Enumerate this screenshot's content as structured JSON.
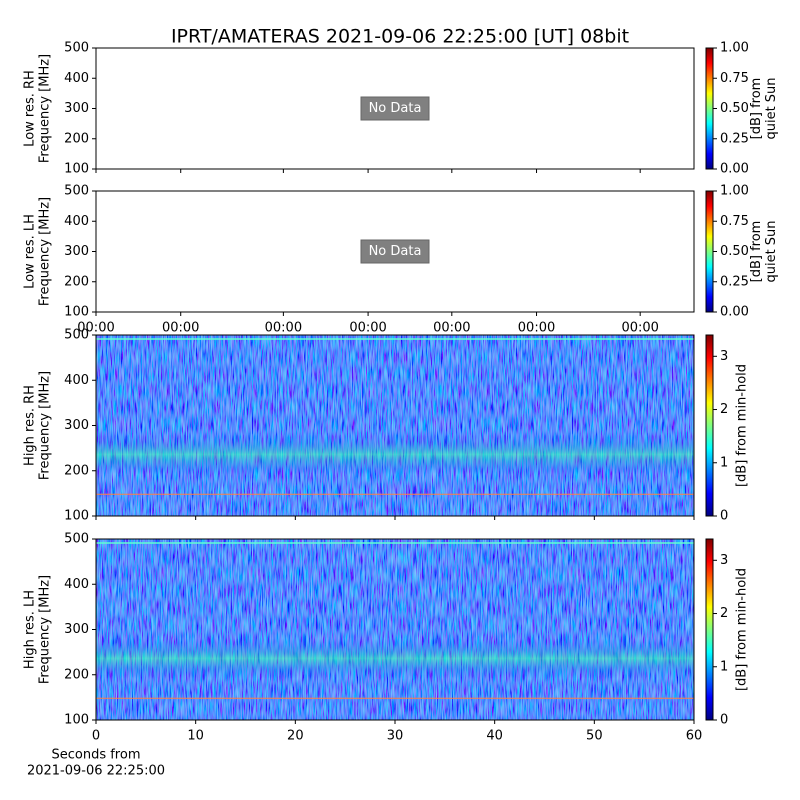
{
  "chart_data": [
    {
      "type": "spectrogram",
      "title": "IPRT/AMATERAS 2021-09-06 22:25:00 [UT]   08bit",
      "ylabel": [
        "Low res. RH",
        "Frequency [MHz]"
      ],
      "ylim": [
        100,
        500
      ],
      "yticks": [
        100,
        200,
        300,
        400,
        500
      ],
      "xlim": [
        0,
        60
      ],
      "colorbar_label": [
        "[dB] from",
        "quiet Sun"
      ],
      "colormap": "jet",
      "clim": [
        0,
        1
      ],
      "cticks": [
        {
          "value": 0,
          "label": "0.00"
        },
        {
          "value": 0.25,
          "label": "0.25"
        },
        {
          "value": 0.5,
          "label": "0.50"
        },
        {
          "value": 0.75,
          "label": "0.75"
        },
        {
          "value": 1,
          "label": "1.00"
        }
      ],
      "annotation": "No Data"
    },
    {
      "type": "spectrogram",
      "ylabel": [
        "Low res. LH",
        "Frequency [MHz]"
      ],
      "ylim": [
        100,
        500
      ],
      "yticks": [
        100,
        200,
        300,
        400,
        500
      ],
      "xlim": [
        0,
        60
      ],
      "xticks": [
        {
          "value": 0,
          "label": "00:00"
        },
        {
          "value": 8.5,
          "label": "00:00"
        },
        {
          "value": 18.8,
          "label": "00:00"
        },
        {
          "value": 27.3,
          "label": "00:00"
        },
        {
          "value": 35.7,
          "label": "00:00"
        },
        {
          "value": 44.2,
          "label": "00:00"
        },
        {
          "value": 54.6,
          "label": "00:00"
        }
      ],
      "colorbar_label": [
        "[dB] from",
        "quiet Sun"
      ],
      "colormap": "jet",
      "clim": [
        0,
        1
      ],
      "cticks": [
        {
          "value": 0,
          "label": "0.00"
        },
        {
          "value": 0.25,
          "label": "0.25"
        },
        {
          "value": 0.5,
          "label": "0.50"
        },
        {
          "value": 0.75,
          "label": "0.75"
        },
        {
          "value": 1,
          "label": "1.00"
        }
      ],
      "annotation": "No Data"
    },
    {
      "type": "spectrogram",
      "ylabel": [
        "High res. RH",
        "Frequency [MHz]"
      ],
      "ylim": [
        100,
        500
      ],
      "yticks": [
        100,
        200,
        300,
        400,
        500
      ],
      "xlim": [
        0,
        60
      ],
      "colorbar_label": [
        "[dB] from min-hold"
      ],
      "colormap": "jet",
      "clim": [
        0,
        3.4
      ],
      "cticks": [
        0,
        1,
        2,
        3
      ]
    },
    {
      "type": "spectrogram",
      "ylabel": [
        "High res. LH",
        "Frequency [MHz]"
      ],
      "ylim": [
        100,
        500
      ],
      "yticks": [
        100,
        200,
        300,
        400,
        500
      ],
      "xlim": [
        0,
        60
      ],
      "xticks": [
        0,
        10,
        20,
        30,
        40,
        50,
        60
      ],
      "xlabel": [
        "Seconds from",
        "2021-09-06 22:25:00"
      ],
      "colorbar_label": [
        "[dB] from min-hold"
      ],
      "colormap": "jet",
      "clim": [
        0,
        3.4
      ],
      "cticks": [
        0,
        1,
        2,
        3
      ]
    }
  ]
}
